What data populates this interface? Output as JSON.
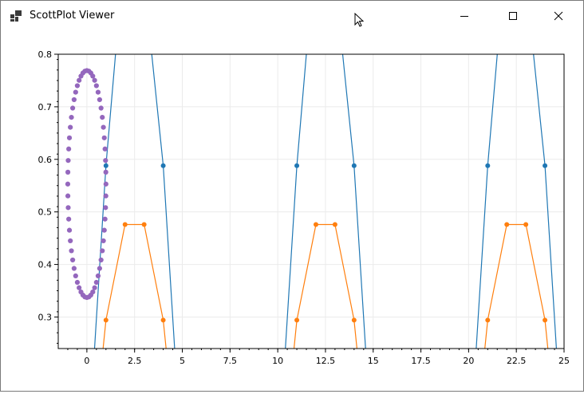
{
  "window": {
    "title": "ScottPlot Viewer",
    "minimize_icon": "minimize-icon",
    "maximize_icon": "maximize-icon",
    "close_icon": "close-icon"
  },
  "chart_data": {
    "type": "scatter",
    "title": "",
    "xlabel": "",
    "ylabel": "",
    "xlim": [
      -1.5,
      25
    ],
    "ylim": [
      0.24,
      0.8
    ],
    "x_ticks": [
      "0",
      "2.5",
      "5",
      "7.5",
      "10",
      "12.5",
      "15",
      "17.5",
      "20",
      "22.5",
      "25"
    ],
    "y_ticks": [
      "0.3",
      "0.4",
      "0.5",
      "0.6",
      "0.7",
      "0.8"
    ],
    "grid": true,
    "series": [
      {
        "color": "#1f77b4",
        "marker": "circle",
        "line": true,
        "segments": [
          [
            [
              0.4,
              0.24
            ],
            [
              1,
              0.588
            ],
            [
              1.5,
              0.8
            ]
          ],
          [
            [
              3.4,
              0.8
            ],
            [
              4,
              0.588
            ],
            [
              4.6,
              0.24
            ]
          ],
          [
            [
              10.4,
              0.24
            ],
            [
              11,
              0.588
            ],
            [
              11.5,
              0.8
            ]
          ],
          [
            [
              13.4,
              0.8
            ],
            [
              14,
              0.588
            ],
            [
              14.6,
              0.24
            ]
          ],
          [
            [
              20.4,
              0.24
            ],
            [
              21,
              0.588
            ],
            [
              21.5,
              0.8
            ]
          ],
          [
            [
              23.4,
              0.8
            ],
            [
              24,
              0.588
            ],
            [
              24.6,
              0.24
            ]
          ]
        ],
        "points": [
          [
            1,
            0.588
          ],
          [
            4,
            0.588
          ],
          [
            11,
            0.588
          ],
          [
            14,
            0.588
          ],
          [
            21,
            0.588
          ],
          [
            24,
            0.588
          ]
        ]
      },
      {
        "color": "#ff7f0e",
        "marker": "circle",
        "line": true,
        "segments": [
          [
            [
              0.85,
              0.24
            ],
            [
              1,
              0.294
            ],
            [
              2,
              0.476
            ],
            [
              3,
              0.476
            ],
            [
              4,
              0.294
            ],
            [
              4.15,
              0.24
            ]
          ],
          [
            [
              10.85,
              0.24
            ],
            [
              11,
              0.294
            ],
            [
              12,
              0.476
            ],
            [
              13,
              0.476
            ],
            [
              14,
              0.294
            ],
            [
              14.15,
              0.24
            ]
          ],
          [
            [
              20.85,
              0.24
            ],
            [
              21,
              0.294
            ],
            [
              22,
              0.476
            ],
            [
              23,
              0.476
            ],
            [
              24,
              0.294
            ],
            [
              24.15,
              0.24
            ]
          ]
        ],
        "points": [
          [
            1,
            0.294
          ],
          [
            2,
            0.476
          ],
          [
            3,
            0.476
          ],
          [
            4,
            0.294
          ],
          [
            11,
            0.294
          ],
          [
            12,
            0.476
          ],
          [
            13,
            0.476
          ],
          [
            14,
            0.294
          ],
          [
            21,
            0.294
          ],
          [
            22,
            0.476
          ],
          [
            23,
            0.476
          ],
          [
            24,
            0.294
          ]
        ]
      },
      {
        "color": "#9467bd",
        "marker": "circle",
        "line": false,
        "shape": "ellipse",
        "center": [
          0,
          0.553
        ],
        "radius_x": 1.0,
        "radius_y": 0.216,
        "count": 60
      }
    ]
  }
}
